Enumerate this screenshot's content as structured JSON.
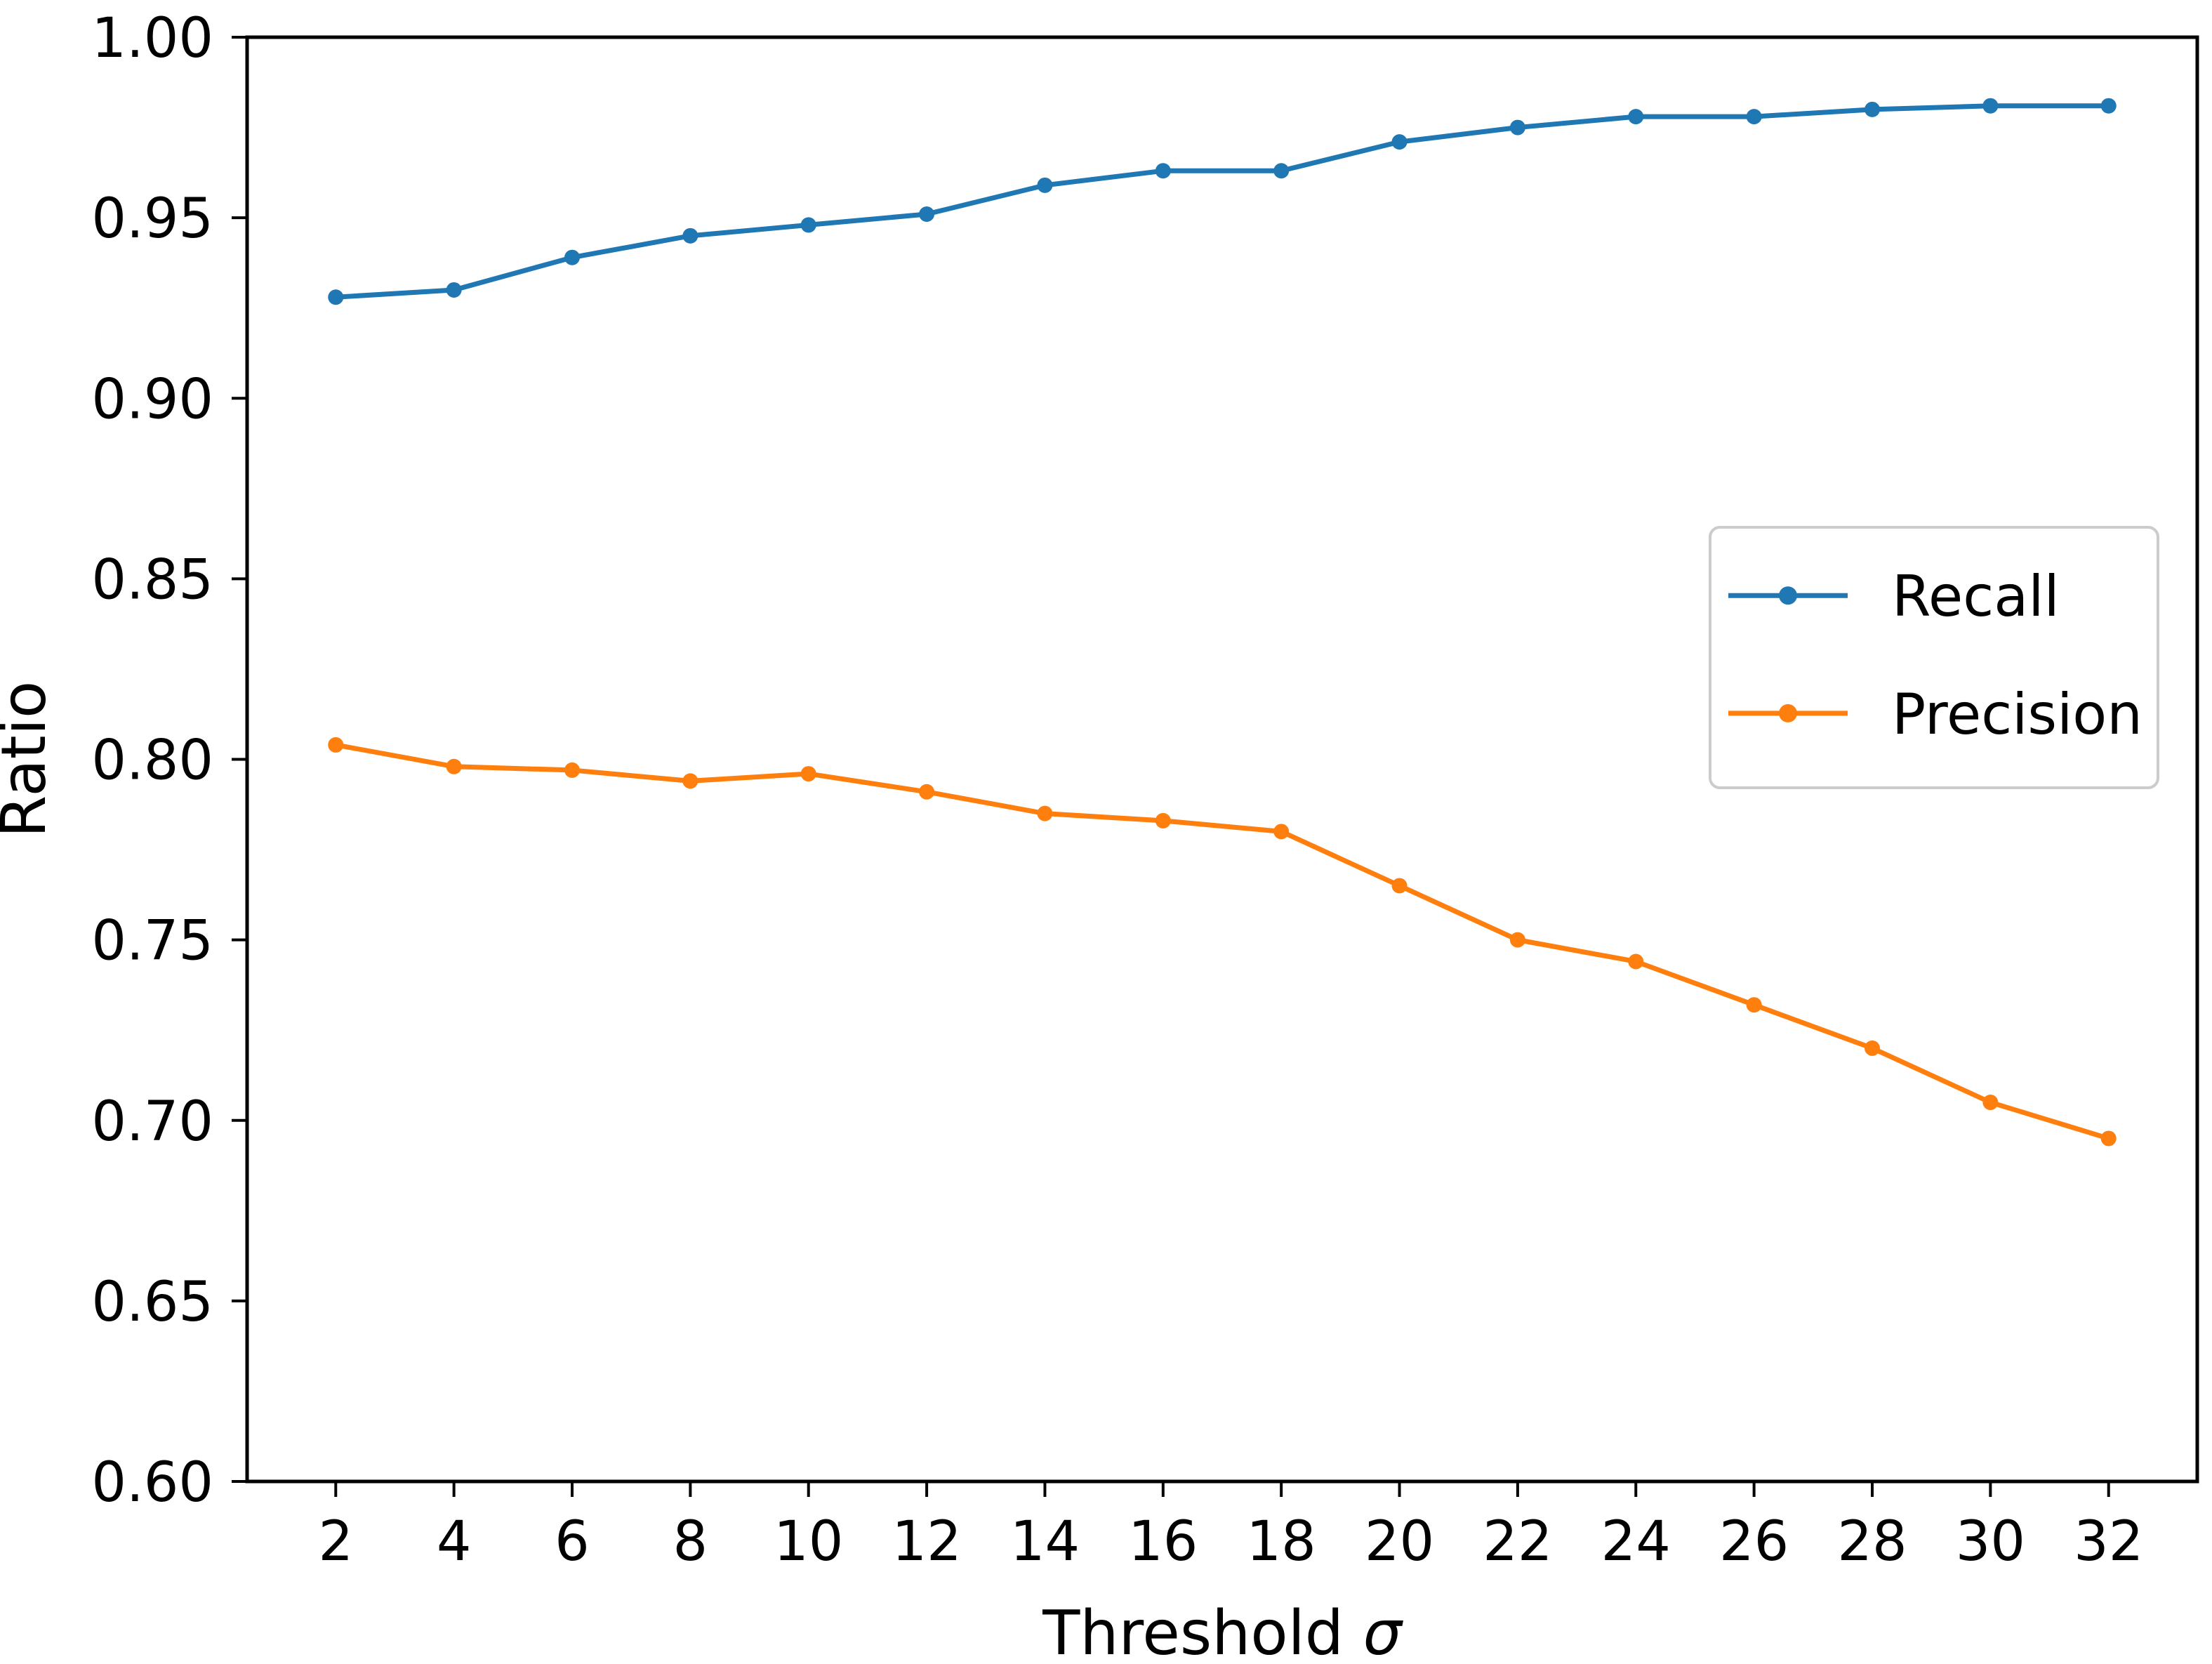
{
  "chart_data": {
    "type": "line",
    "x": [
      2,
      4,
      6,
      8,
      10,
      12,
      14,
      16,
      18,
      20,
      22,
      24,
      26,
      28,
      30,
      32
    ],
    "series": [
      {
        "name": "Recall",
        "color": "#1f77b4",
        "marker": "circle",
        "values": [
          0.928,
          0.93,
          0.939,
          0.945,
          0.948,
          0.951,
          0.959,
          0.963,
          0.963,
          0.971,
          0.975,
          0.978,
          0.978,
          0.98,
          0.981,
          0.981
        ]
      },
      {
        "name": "Precision",
        "color": "#ff7f0e",
        "marker": "circle",
        "values": [
          0.804,
          0.798,
          0.797,
          0.794,
          0.796,
          0.791,
          0.785,
          0.783,
          0.78,
          0.765,
          0.75,
          0.744,
          0.732,
          0.72,
          0.705,
          0.695
        ]
      }
    ],
    "title": "",
    "xlabel": "Threshold σ",
    "xlabel_symbol_italic": "σ",
    "ylabel": "Ratio",
    "xlim": [
      0.5,
      33.5
    ],
    "ylim": [
      0.6,
      1.0
    ],
    "xticks": [
      2,
      4,
      6,
      8,
      10,
      12,
      14,
      16,
      18,
      20,
      22,
      24,
      26,
      28,
      30,
      32
    ],
    "yticks": [
      0.6,
      0.65,
      0.7,
      0.75,
      0.8,
      0.85,
      0.9,
      0.95,
      1.0
    ],
    "ytick_decimals": 2,
    "grid": false,
    "legend": {
      "position": "center-right",
      "entries": [
        "Recall",
        "Precision"
      ]
    },
    "axis_color": "#000000",
    "background_color": "#ffffff",
    "legend_border_color": "#cccccc"
  }
}
